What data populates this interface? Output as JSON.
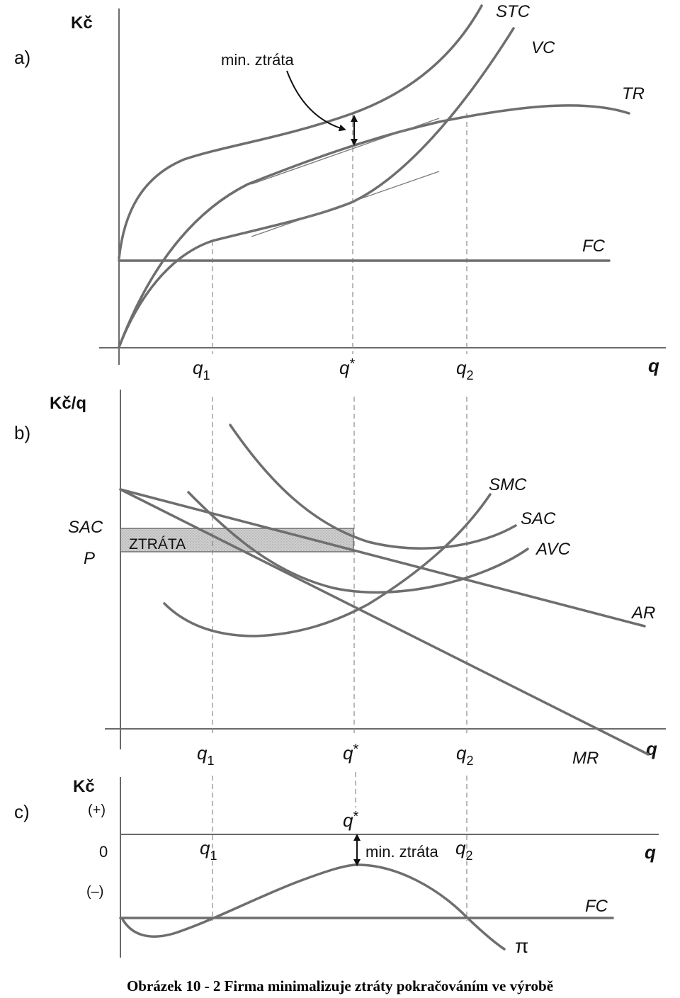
{
  "panel_a": {
    "panel_label": "a)",
    "y_axis_label": "Kč",
    "x_axis_label": "q",
    "curves": {
      "stc": "STC",
      "vc": "VC",
      "tr": "TR",
      "fc": "FC"
    },
    "annotation": "min. ztráta",
    "ticks": {
      "q1": "q",
      "q1_sub": "1",
      "qstar": "q",
      "qstar_sup": "*",
      "q2": "q",
      "q2_sub": "2"
    }
  },
  "panel_b": {
    "panel_label": "b)",
    "y_axis_label": "Kč/q",
    "x_axis_label": "q",
    "curves": {
      "smc": "SMC",
      "sac": "SAC",
      "avc": "AVC",
      "ar": "AR",
      "mr": "MR"
    },
    "y_labels": {
      "sac": "SAC",
      "p": "P"
    },
    "loss_box": "ZTRÁTA",
    "ticks": {
      "q1": "q",
      "q1_sub": "1",
      "qstar": "q",
      "qstar_sup": "*",
      "q2": "q",
      "q2_sub": "2"
    }
  },
  "panel_c": {
    "panel_label": "c)",
    "y_axis_label": "Kč",
    "x_axis_label": "q",
    "plus_label": "(+)",
    "zero_label": "0",
    "minus_label": "(–)",
    "curves": {
      "fc": "FC",
      "pi": "π"
    },
    "annotation": "min. ztráta",
    "ticks": {
      "q1": "q",
      "q1_sub": "1",
      "qstar": "q",
      "qstar_sup": "*",
      "q2": "q",
      "q2_sub": "2"
    }
  },
  "caption": "Obrázek 10 - 2 Firma minimalizuje ztráty pokračováním ve výrobě",
  "colors": {
    "curve": "#6e6e6e",
    "loss_fill": "#c9c9c9",
    "text": "#111111"
  }
}
